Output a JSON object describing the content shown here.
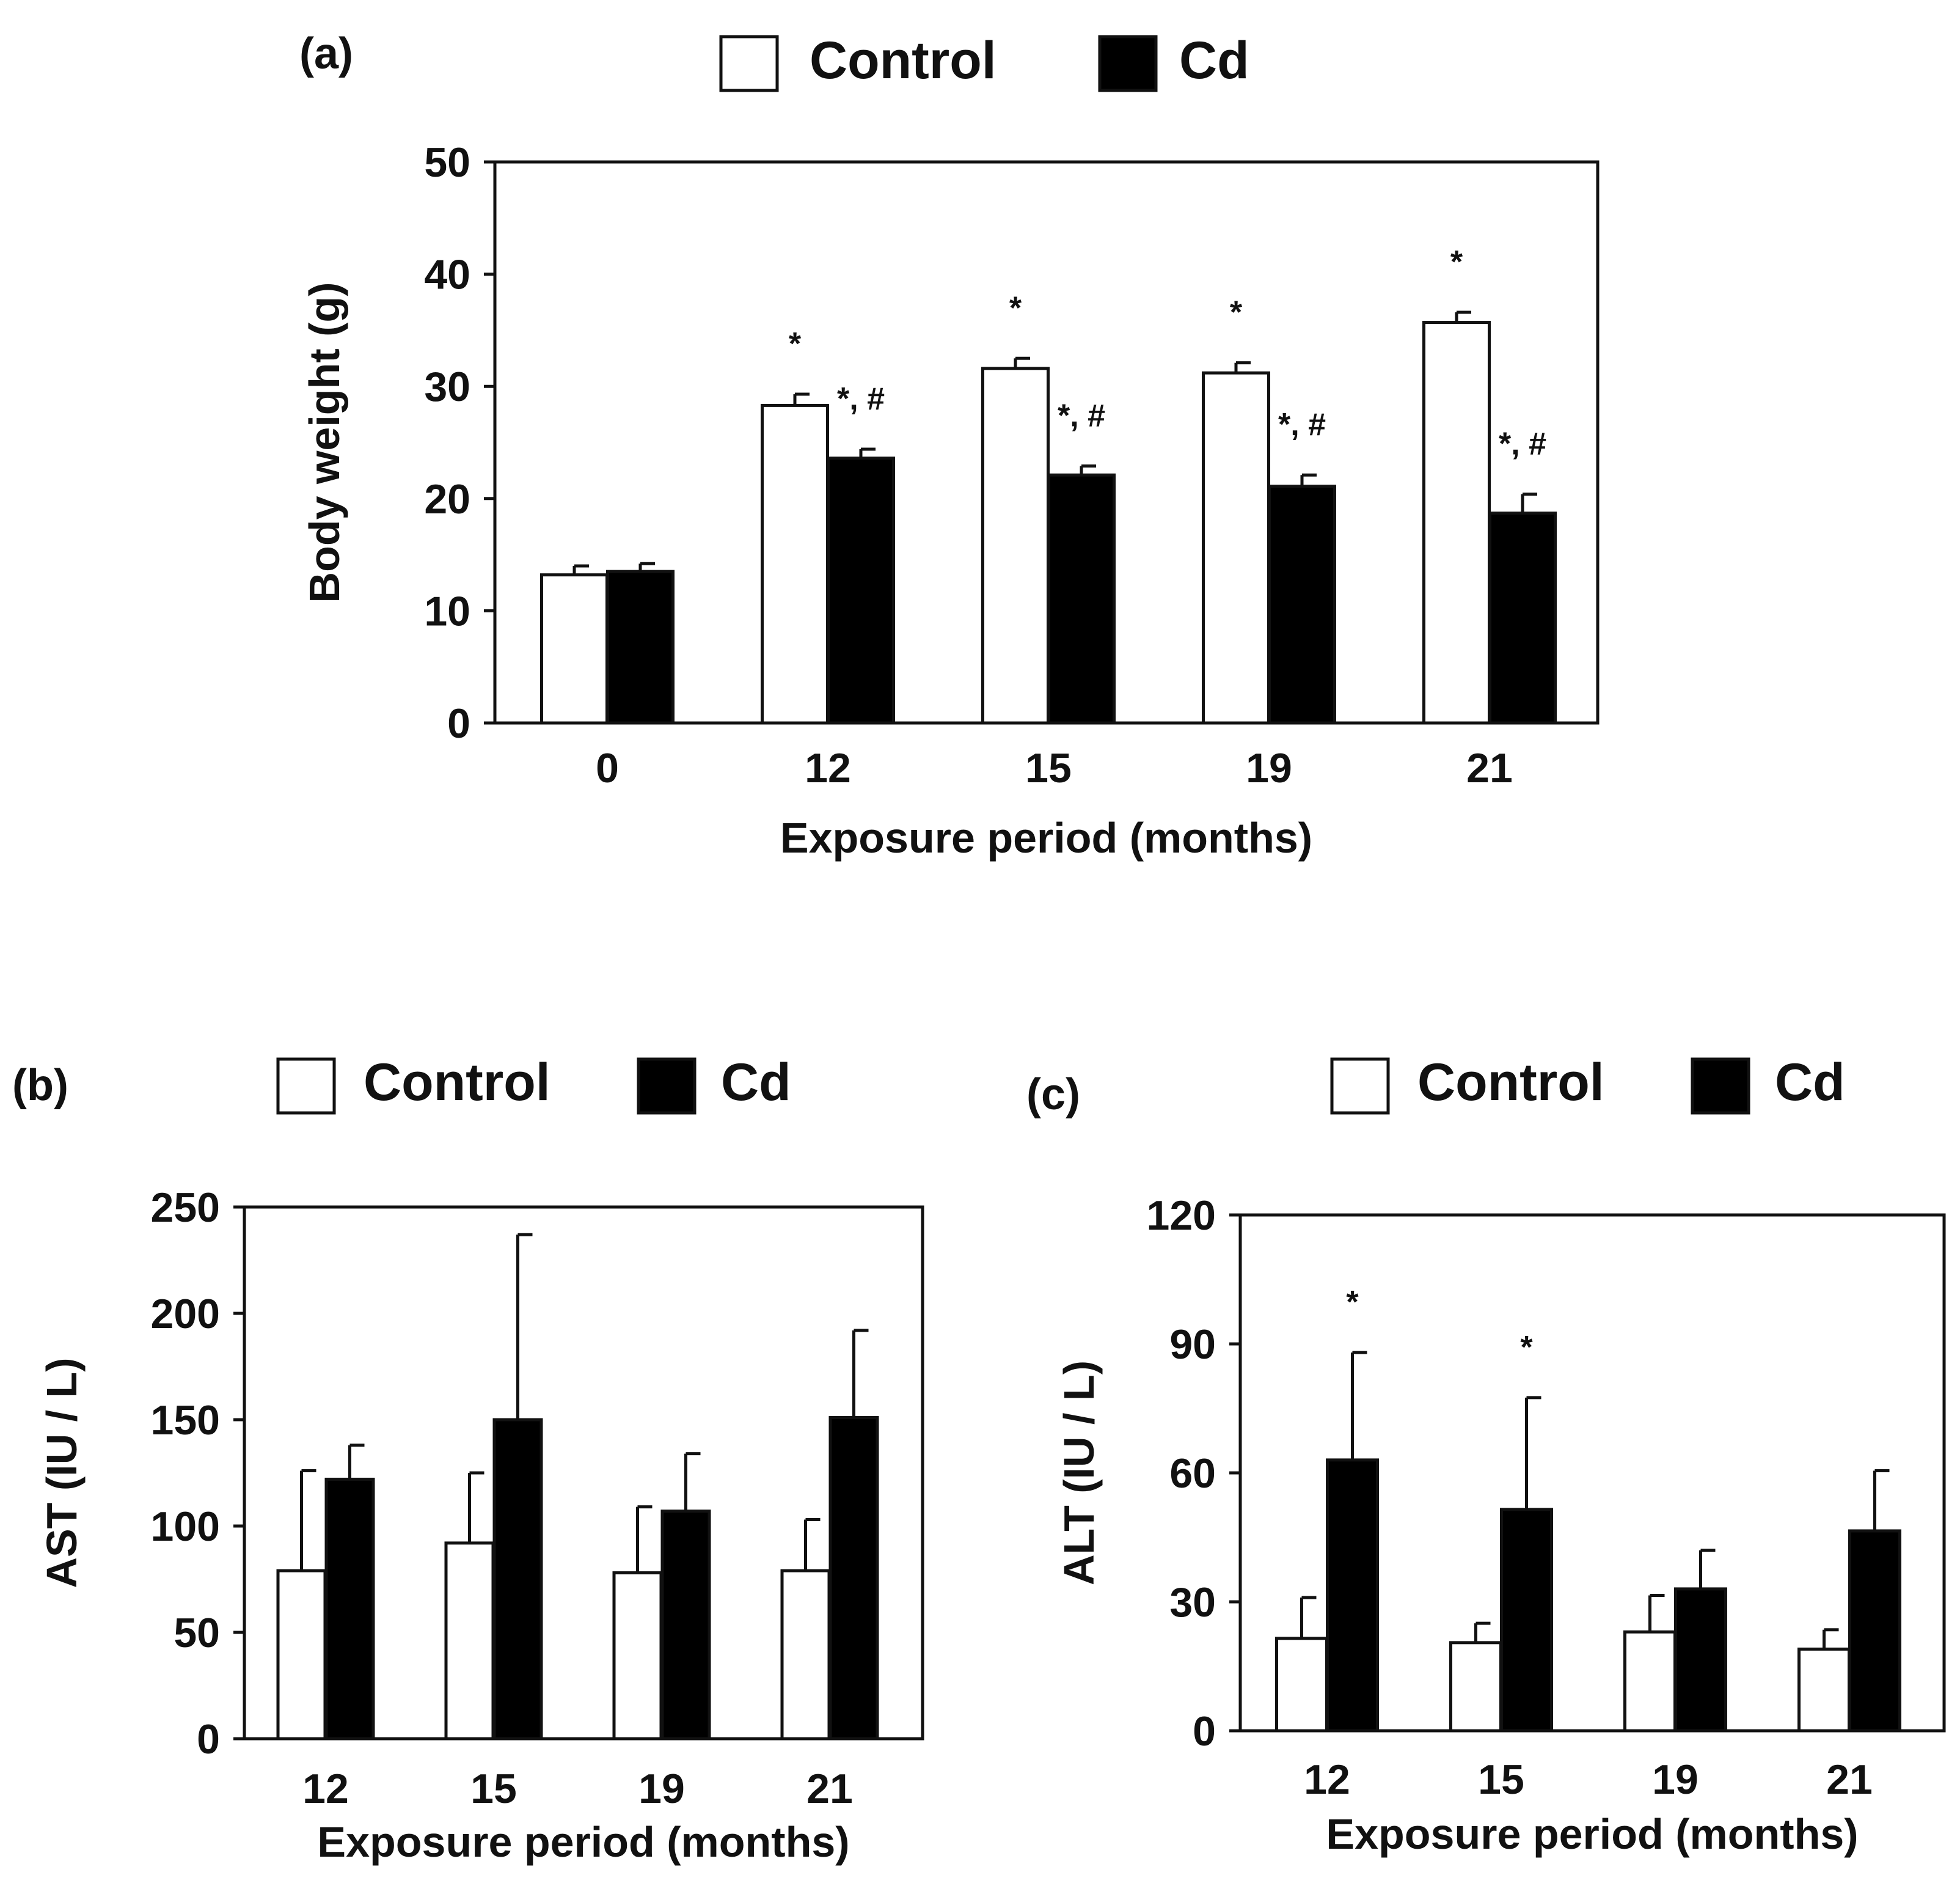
{
  "chart_data": [
    {
      "type": "bar",
      "panel_label": "(a)",
      "categories": [
        "0",
        "12",
        "15",
        "19",
        "21"
      ],
      "series": [
        {
          "name": "Control",
          "values": [
            13.2,
            28.3,
            31.6,
            31.2,
            35.7
          ],
          "errors": [
            0.8,
            1.0,
            0.9,
            0.9,
            0.9
          ],
          "annotations": [
            "",
            "*",
            "*",
            "*",
            "*"
          ]
        },
        {
          "name": "Cd",
          "values": [
            13.5,
            23.6,
            22.1,
            21.1,
            18.7
          ],
          "errors": [
            0.7,
            0.8,
            0.8,
            1.0,
            1.7
          ],
          "annotations": [
            "",
            "*, #",
            "*, #",
            "*, #",
            "*, #"
          ]
        }
      ],
      "xlabel": "Exposure period (months)",
      "ylabel": "Body weight (g)",
      "ylim": [
        0,
        50
      ],
      "yticks": [
        0,
        10,
        20,
        30,
        40,
        50
      ],
      "legend": "top-center"
    },
    {
      "type": "bar",
      "panel_label": "(b)",
      "categories": [
        "12",
        "15",
        "19",
        "21"
      ],
      "series": [
        {
          "name": "Control",
          "values": [
            79,
            92,
            78,
            79
          ],
          "errors": [
            47,
            33,
            31,
            24
          ],
          "annotations": [
            "",
            "",
            "",
            ""
          ]
        },
        {
          "name": "Cd",
          "values": [
            122,
            150,
            107,
            151
          ],
          "errors": [
            16,
            87,
            27,
            41
          ],
          "annotations": [
            "",
            "",
            "",
            ""
          ]
        }
      ],
      "xlabel": "Exposure period (months)",
      "ylabel": "AST (IU / L)",
      "ylim": [
        0,
        250
      ],
      "yticks": [
        0,
        50,
        100,
        150,
        200,
        250
      ],
      "legend": "top-center"
    },
    {
      "type": "bar",
      "panel_label": "(c)",
      "categories": [
        "12",
        "15",
        "19",
        "21"
      ],
      "series": [
        {
          "name": "Control",
          "values": [
            21.5,
            20.5,
            23,
            19
          ],
          "errors": [
            9.5,
            4.5,
            8.5,
            4.5
          ],
          "annotations": [
            "",
            "",
            "",
            ""
          ]
        },
        {
          "name": "Cd",
          "values": [
            63,
            51.5,
            33,
            46.5
          ],
          "errors": [
            25,
            26,
            9,
            14
          ],
          "annotations": [
            "*",
            "*",
            "",
            ""
          ]
        }
      ],
      "xlabel": "Exposure period (months)",
      "ylabel": "ALT (IU / L)",
      "ylim": [
        0,
        120
      ],
      "yticks": [
        0,
        30,
        60,
        90,
        120
      ],
      "legend": "top-center"
    }
  ],
  "colors": {
    "Control": "#ffffff",
    "Cd": "#000000",
    "stroke": "#111111"
  }
}
